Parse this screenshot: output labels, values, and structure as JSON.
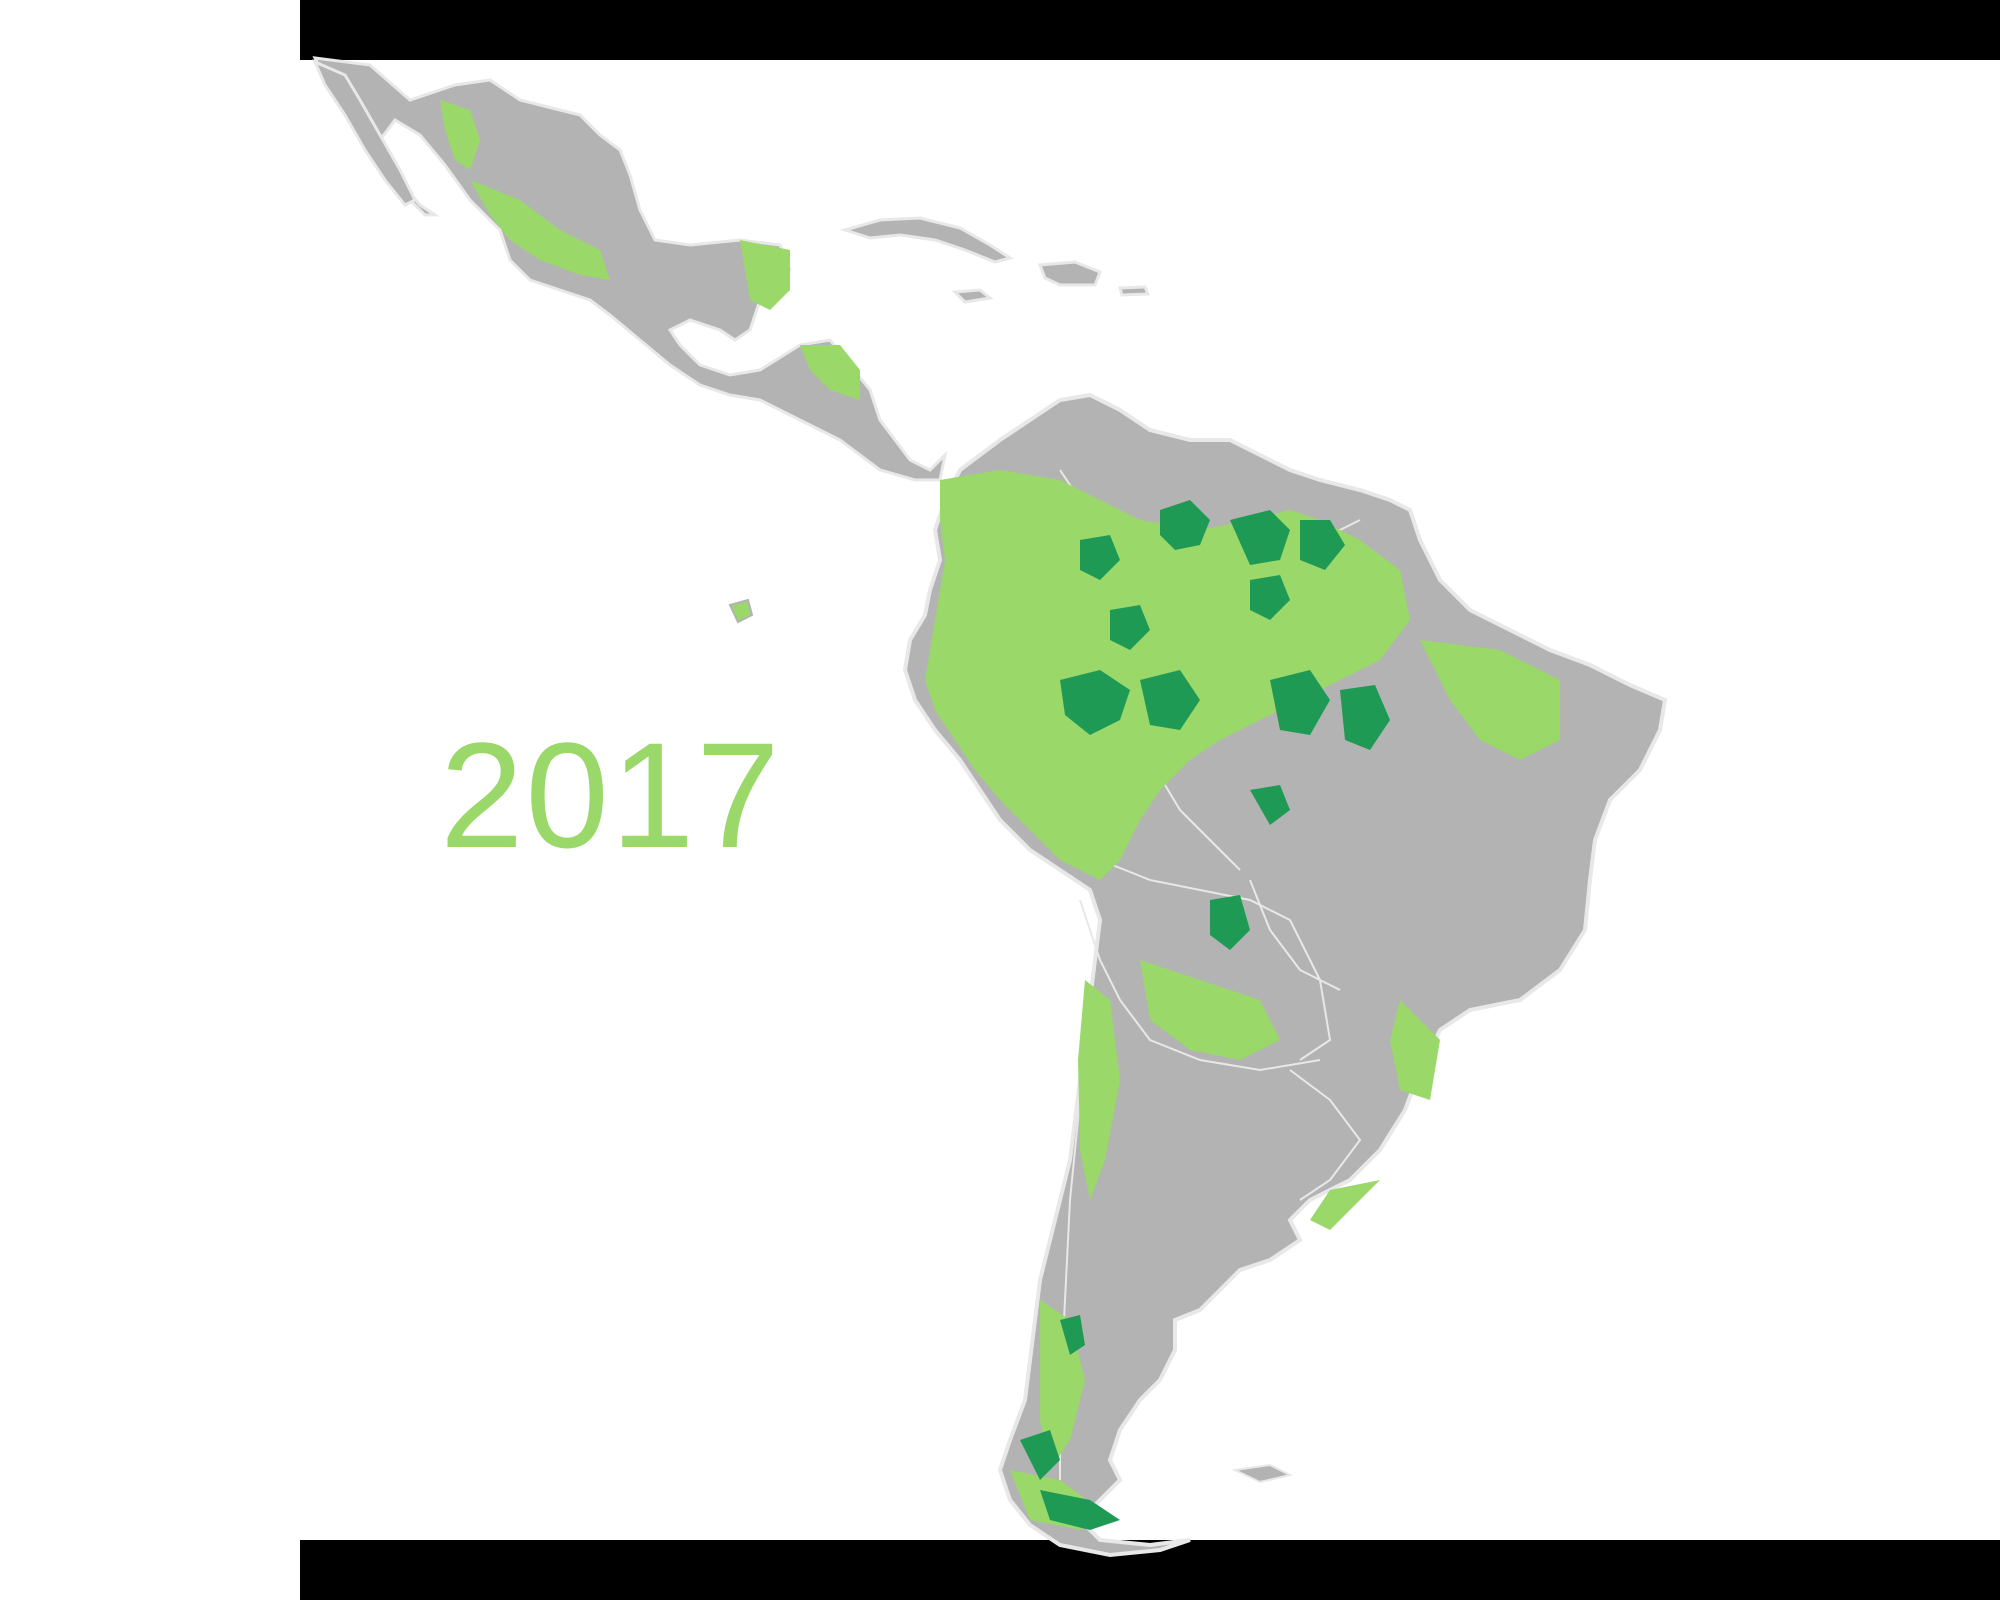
{
  "map": {
    "region": "Latin America",
    "year_label": "2017",
    "colors": {
      "background": "#ffffff",
      "land": "#b3b3b3",
      "border": "#e8e8e8",
      "forest_light": "#9ad86a",
      "forest_dark": "#1f9a55",
      "label": "#9ad86a"
    }
  }
}
